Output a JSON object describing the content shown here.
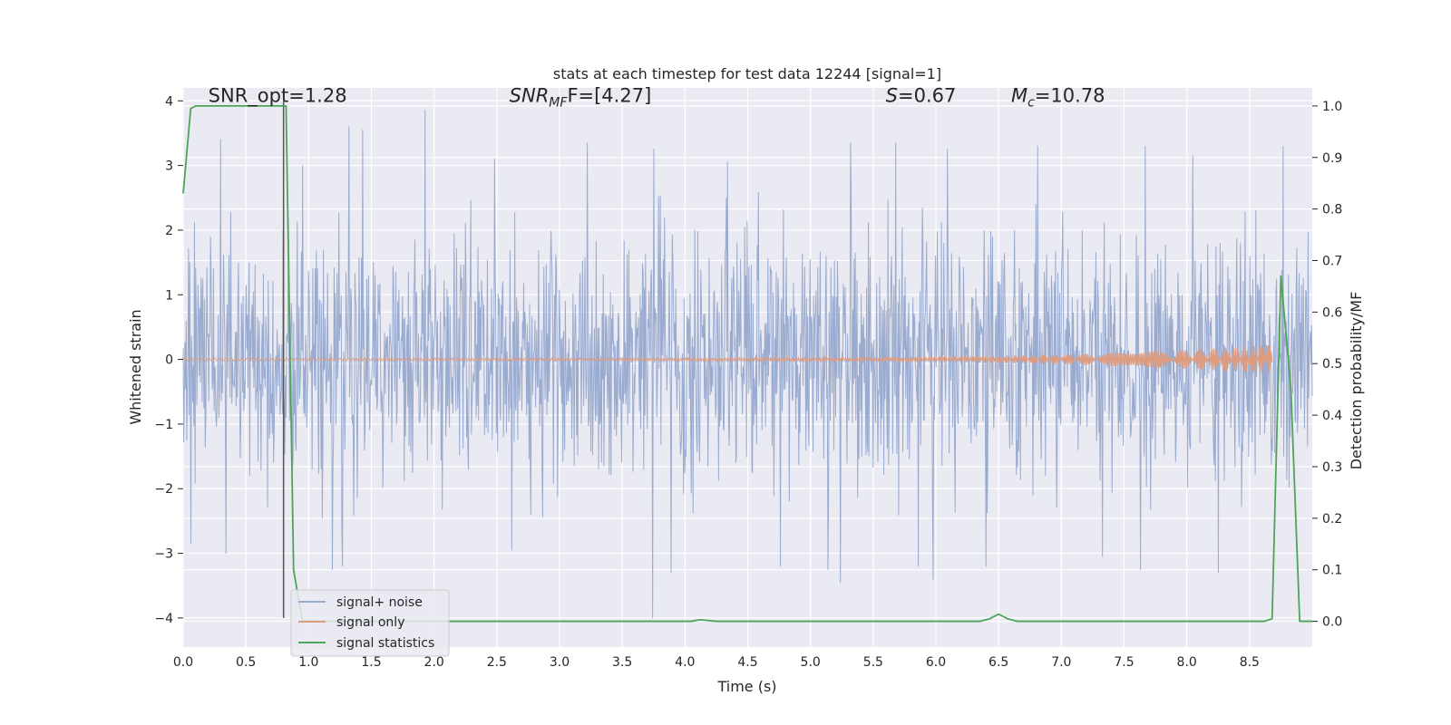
{
  "chart_data": {
    "type": "line",
    "title": "stats at each timestep for test data 12244 [signal=1]",
    "xlabel": "Time (s)",
    "ylabel": "Whitened strain",
    "ylabel_right": "Detection probability/MF",
    "xlim": [
      0.0,
      9.0
    ],
    "ylim": [
      -4.45,
      4.2
    ],
    "ylim_right": [
      -0.05,
      1.035
    ],
    "x_ticks": [
      "0.0",
      "0.5",
      "1.0",
      "1.5",
      "2.0",
      "2.5",
      "3.0",
      "3.5",
      "4.0",
      "4.5",
      "5.0",
      "5.5",
      "6.0",
      "6.5",
      "7.0",
      "7.5",
      "8.0",
      "8.5"
    ],
    "y_ticks": [
      "4",
      "3",
      "2",
      "1",
      "0",
      "−1",
      "−2",
      "−3",
      "−4"
    ],
    "y_ticks_right": [
      "1.0",
      "0.9",
      "0.8",
      "0.7",
      "0.6",
      "0.5",
      "0.4",
      "0.3",
      "0.2",
      "0.1",
      "0.0"
    ],
    "grid": true,
    "legend_position": "lower-left",
    "annotations": [
      {
        "name": "snr-opt",
        "text": "SNR_opt=1.28",
        "x": 0.2,
        "y": 3.98
      },
      {
        "name": "snr-mf",
        "base": "SNR",
        "sub": "MF",
        "value": "F=[4.27]",
        "x": 2.6,
        "y": 3.98
      },
      {
        "name": "s-value",
        "base": "S",
        "value": "=0.67",
        "x": 5.6,
        "y": 3.98
      },
      {
        "name": "mc-value",
        "base": "M",
        "sub": "c",
        "value": "=10.78",
        "x": 6.6,
        "y": 3.98
      }
    ],
    "vline": {
      "x": 0.8,
      "y0": -4.0,
      "y1": 4.0,
      "color": "#555555"
    },
    "series": [
      {
        "name": "signal+ noise",
        "color": "#9aabd0",
        "axis": "left",
        "kind": "noise-band",
        "x_range": [
          0.0,
          9.0
        ],
        "envelope_top": 2.6,
        "envelope_bottom": -2.6,
        "peaks_up": [
          [
            0.3,
            3.4
          ],
          [
            0.95,
            3.0
          ],
          [
            1.32,
            3.6
          ],
          [
            1.43,
            3.55
          ],
          [
            1.93,
            3.85
          ],
          [
            2.48,
            3.1
          ],
          [
            3.22,
            3.35
          ],
          [
            3.75,
            3.25
          ],
          [
            4.34,
            3.05
          ],
          [
            5.32,
            3.35
          ],
          [
            5.68,
            3.35
          ],
          [
            6.09,
            3.25
          ],
          [
            6.81,
            3.3
          ],
          [
            7.67,
            3.3
          ],
          [
            8.05,
            3.15
          ],
          [
            8.77,
            3.3
          ]
        ],
        "peaks_down": [
          [
            0.06,
            -2.85
          ],
          [
            0.34,
            -3.0
          ],
          [
            1.19,
            -3.25
          ],
          [
            1.27,
            -3.2
          ],
          [
            2.62,
            -2.95
          ],
          [
            3.74,
            -4.0
          ],
          [
            3.89,
            -3.3
          ],
          [
            4.76,
            -3.2
          ],
          [
            5.14,
            -3.25
          ],
          [
            5.24,
            -3.45
          ],
          [
            5.86,
            -3.2
          ],
          [
            5.98,
            -3.4
          ],
          [
            6.4,
            -3.2
          ],
          [
            7.33,
            -3.05
          ],
          [
            7.63,
            -3.25
          ],
          [
            8.25,
            -3.3
          ]
        ]
      },
      {
        "name": "signal only",
        "color": "#dd9c80",
        "axis": "left",
        "kind": "chirp",
        "x_range": [
          0.0,
          8.68
        ],
        "amplitude_start": 0.02,
        "amplitude_end": 0.23
      },
      {
        "name": "signal statistics",
        "color": "#4ea45b",
        "axis": "right",
        "kind": "line",
        "points": [
          [
            0.0,
            0.83
          ],
          [
            0.06,
            0.995
          ],
          [
            0.1,
            1.0
          ],
          [
            0.82,
            1.0
          ],
          [
            0.88,
            0.1
          ],
          [
            0.95,
            0.0
          ],
          [
            4.05,
            0.0
          ],
          [
            4.12,
            0.003
          ],
          [
            4.25,
            0.0
          ],
          [
            6.35,
            0.0
          ],
          [
            6.43,
            0.005
          ],
          [
            6.5,
            0.014
          ],
          [
            6.57,
            0.005
          ],
          [
            6.65,
            0.0
          ],
          [
            8.62,
            0.0
          ],
          [
            8.68,
            0.005
          ],
          [
            8.75,
            0.67
          ],
          [
            8.83,
            0.45
          ],
          [
            8.9,
            0.0
          ],
          [
            9.0,
            0.0
          ]
        ]
      }
    ]
  }
}
